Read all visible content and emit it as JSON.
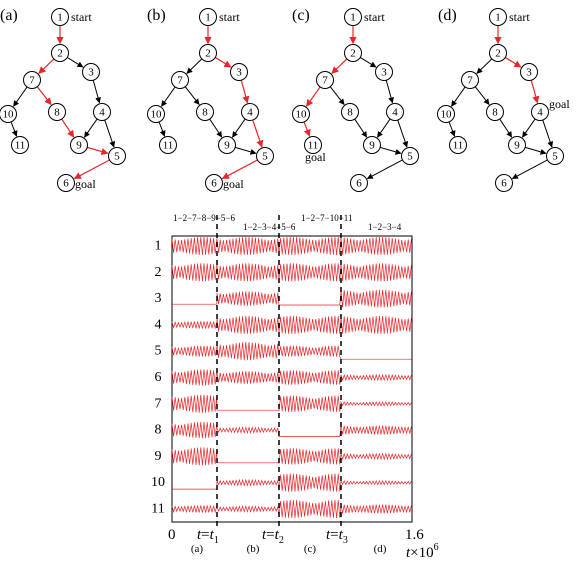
{
  "panels": [
    {
      "label": "(a)",
      "red_edges": [
        [
          1,
          2
        ],
        [
          2,
          7
        ],
        [
          7,
          8
        ],
        [
          8,
          9
        ],
        [
          9,
          5
        ],
        [
          5,
          6
        ]
      ],
      "start_label": "start",
      "goal_node": 6,
      "goal_label": "goal"
    },
    {
      "label": "(b)",
      "red_edges": [
        [
          1,
          2
        ],
        [
          2,
          3
        ],
        [
          3,
          4
        ],
        [
          4,
          5
        ],
        [
          5,
          6
        ]
      ],
      "start_label": "start",
      "goal_node": 6,
      "goal_label": "goal"
    },
    {
      "label": "(c)",
      "red_edges": [
        [
          1,
          2
        ],
        [
          2,
          7
        ],
        [
          7,
          10
        ],
        [
          10,
          11
        ]
      ],
      "start_label": "start",
      "goal_node": 11,
      "goal_label": "goal"
    },
    {
      "label": "(d)",
      "red_edges": [
        [
          1,
          2
        ],
        [
          2,
          3
        ],
        [
          3,
          4
        ]
      ],
      "start_label": "start",
      "goal_node": 4,
      "goal_label": "goal"
    }
  ],
  "graph": {
    "nodes": [
      "1",
      "2",
      "3",
      "4",
      "5",
      "6",
      "7",
      "8",
      "9",
      "10",
      "11"
    ],
    "edges": [
      [
        1,
        2
      ],
      [
        2,
        7
      ],
      [
        2,
        3
      ],
      [
        7,
        10
      ],
      [
        7,
        8
      ],
      [
        10,
        11
      ],
      [
        3,
        4
      ],
      [
        8,
        9
      ],
      [
        4,
        9
      ],
      [
        4,
        5
      ],
      [
        9,
        5
      ],
      [
        5,
        6
      ]
    ]
  },
  "timeline": {
    "path_labels": [
      "1−2−7−8−9−5−6",
      "1−2−3−4−5−6",
      "1−2−7−10−11",
      "1−2−3−4"
    ],
    "trace_labels": [
      "1",
      "2",
      "3",
      "4",
      "5",
      "6",
      "7",
      "8",
      "9",
      "10",
      "11"
    ],
    "x_ticks": [
      "0",
      "1.6"
    ],
    "t_labels": [
      "t",
      "t",
      "t"
    ],
    "t_subscripts": [
      "1",
      "2",
      "3"
    ],
    "section_labels": [
      "(a)",
      "(b)",
      "(c)",
      "(d)"
    ],
    "axis_label": "t",
    "axis_exponent": "×10",
    "axis_exponent_power": "6",
    "red_color": "#e8262b"
  }
}
